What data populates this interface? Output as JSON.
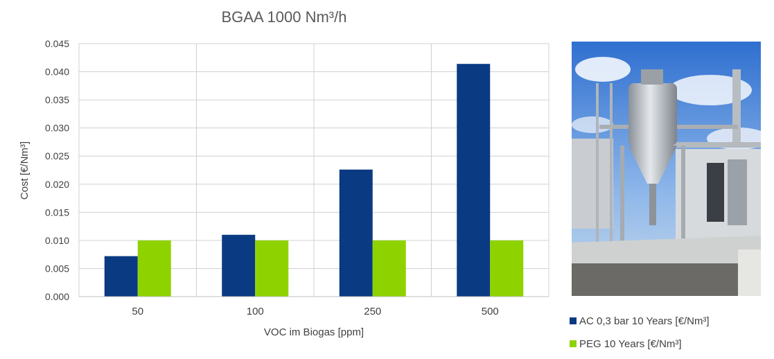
{
  "chart_data": {
    "type": "bar",
    "title": "BGAA 1000 Nm³/h",
    "xlabel": "VOC im Biogas [ppm]",
    "ylabel": "Cost [€/Nm³]",
    "categories": [
      "50",
      "100",
      "250",
      "500"
    ],
    "ylim": [
      0,
      0.045
    ],
    "yticks": [
      "0.000",
      "0.005",
      "0.010",
      "0.015",
      "0.020",
      "0.025",
      "0.030",
      "0.035",
      "0.040",
      "0.045"
    ],
    "grid": true,
    "legend_position": "bottom-right",
    "series": [
      {
        "name": "AC 0,3 bar 10 Years [€/Nm³]",
        "color": "#0a3a82",
        "values": [
          0.0072,
          0.011,
          0.0226,
          0.0414
        ]
      },
      {
        "name": "PEG 10 Years [€/Nm³]",
        "color": "#8ed300",
        "values": [
          0.01,
          0.01,
          0.01,
          0.01
        ]
      }
    ]
  },
  "photo": {
    "icon": "biogas-plant-photo"
  }
}
